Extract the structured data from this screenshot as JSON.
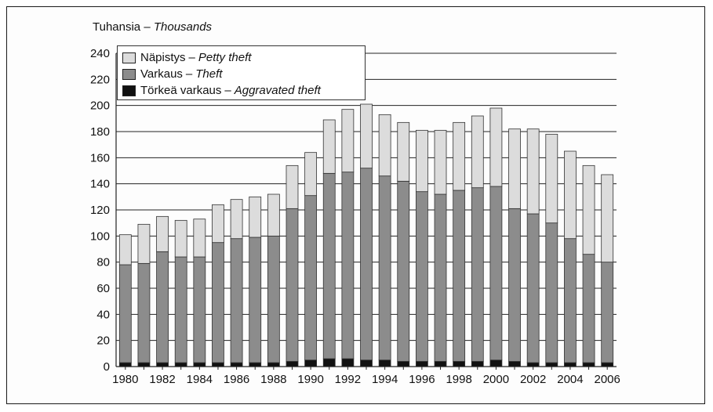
{
  "chart_data": {
    "type": "bar",
    "stacked": true,
    "unit_label": {
      "fi": "Tuhansia",
      "sep": "–",
      "en": "Thousands"
    },
    "x": [
      1980,
      1981,
      1982,
      1983,
      1984,
      1985,
      1986,
      1987,
      1988,
      1989,
      1990,
      1991,
      1992,
      1993,
      1994,
      1995,
      1996,
      1997,
      1998,
      1999,
      2000,
      2001,
      2002,
      2003,
      2004,
      2005,
      2006
    ],
    "x_tick_labels": [
      "1980",
      "1982",
      "1984",
      "1986",
      "1988",
      "1990",
      "1992",
      "1994",
      "1996",
      "1998",
      "2000",
      "2002",
      "2004",
      "2006"
    ],
    "ylim": [
      0,
      240
    ],
    "y_ticks": [
      0,
      20,
      40,
      60,
      80,
      100,
      120,
      140,
      160,
      180,
      200,
      220,
      240
    ],
    "grid": true,
    "legend_position": "top-left",
    "series": [
      {
        "name_fi": "Törkeä varkaus",
        "name_en": "Aggravated theft",
        "color": "#111111",
        "values": [
          3,
          3,
          3,
          3,
          3,
          3,
          3,
          3,
          3,
          4,
          5,
          6,
          6,
          5,
          5,
          4,
          4,
          4,
          4,
          4,
          5,
          4,
          3,
          3,
          3,
          3,
          3
        ]
      },
      {
        "name_fi": "Varkaus",
        "name_en": "Theft",
        "color": "#8c8c8c",
        "values": [
          75,
          76,
          85,
          81,
          81,
          92,
          95,
          96,
          97,
          117,
          126,
          142,
          143,
          147,
          141,
          138,
          130,
          128,
          131,
          133,
          133,
          117,
          114,
          107,
          95,
          83,
          77
        ]
      },
      {
        "name_fi": "Näpistys",
        "name_en": "Petty theft",
        "color": "#dcdcdc",
        "values": [
          23,
          30,
          27,
          28,
          29,
          29,
          30,
          31,
          32,
          33,
          33,
          41,
          48,
          49,
          47,
          45,
          47,
          49,
          52,
          55,
          60,
          61,
          65,
          68,
          67,
          68,
          67
        ]
      }
    ],
    "legend_order": [
      2,
      1,
      0
    ]
  }
}
